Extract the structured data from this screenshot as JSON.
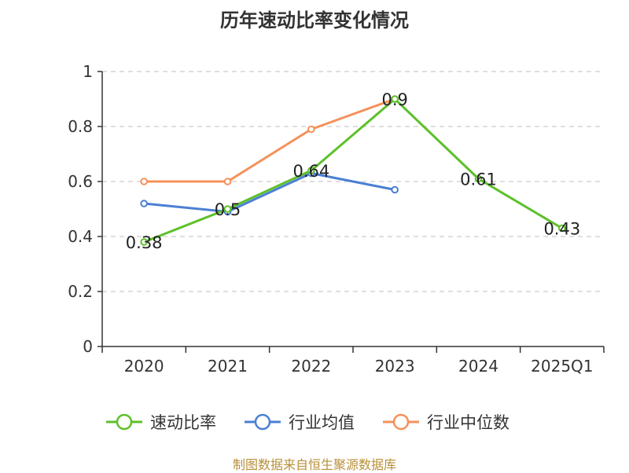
{
  "chart_data": {
    "type": "line",
    "title": "历年速动比率变化情况",
    "categories": [
      "2020",
      "2021",
      "2022",
      "2023",
      "2024",
      "2025Q1"
    ],
    "ylim": [
      0,
      1
    ],
    "yticks": [
      "0",
      "0.2",
      "0.4",
      "0.6",
      "0.8",
      "1"
    ],
    "grid": true,
    "legend_position": "bottom",
    "series": [
      {
        "name": "速动比率",
        "color": "#5cc02a",
        "values": [
          0.38,
          0.5,
          0.64,
          0.9,
          0.61,
          0.43
        ],
        "labels": [
          "0.38",
          "0.5",
          "0.64",
          "0.9",
          "0.61",
          "0.43"
        ]
      },
      {
        "name": "行业均值",
        "color": "#4a7fd4",
        "values": [
          0.52,
          0.49,
          0.63,
          0.57,
          null,
          null
        ]
      },
      {
        "name": "行业中位数",
        "color": "#f5915a",
        "values": [
          0.6,
          0.6,
          0.79,
          0.9,
          null,
          null
        ]
      }
    ]
  },
  "source_text": "制图数据来自恒生聚源数据库"
}
